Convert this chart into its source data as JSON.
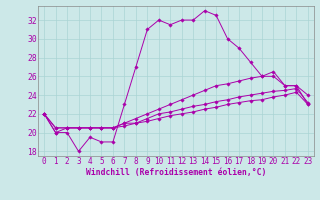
{
  "xlabel": "Windchill (Refroidissement éolien,°C)",
  "xlim": [
    -0.5,
    23.5
  ],
  "ylim": [
    17.5,
    33.5
  ],
  "yticks": [
    18,
    20,
    22,
    24,
    26,
    28,
    30,
    32
  ],
  "xticks": [
    0,
    1,
    2,
    3,
    4,
    5,
    6,
    7,
    8,
    9,
    10,
    11,
    12,
    13,
    14,
    15,
    16,
    17,
    18,
    19,
    20,
    21,
    22,
    23
  ],
  "bg_color": "#cce8e8",
  "grid_color": "#aad4d4",
  "line_color": "#aa00aa",
  "lines": [
    [
      22,
      20,
      20,
      18,
      19.5,
      19,
      19,
      23,
      27,
      31,
      32,
      31.5,
      32,
      32,
      33,
      32.5,
      30,
      29,
      27.5,
      26,
      26,
      25,
      25,
      23
    ],
    [
      22,
      20,
      20.5,
      20.5,
      20.5,
      20.5,
      20.5,
      21,
      21.5,
      22,
      22.5,
      23,
      23.5,
      24,
      24.5,
      25,
      25.2,
      25.5,
      25.8,
      26,
      26.5,
      25,
      25,
      24
    ],
    [
      22,
      20.5,
      20.5,
      20.5,
      20.5,
      20.5,
      20.5,
      21,
      21,
      21.5,
      22,
      22.2,
      22.5,
      22.8,
      23,
      23.3,
      23.5,
      23.8,
      24,
      24.2,
      24.4,
      24.5,
      24.7,
      23.2
    ],
    [
      22,
      20.5,
      20.5,
      20.5,
      20.5,
      20.5,
      20.5,
      20.7,
      21,
      21.2,
      21.5,
      21.8,
      22,
      22.2,
      22.5,
      22.7,
      23,
      23.2,
      23.4,
      23.5,
      23.8,
      24,
      24.3,
      23
    ]
  ],
  "tick_fontsize": 5.5,
  "xlabel_fontsize": 5.8,
  "marker_size": 1.8,
  "linewidth": 0.7
}
